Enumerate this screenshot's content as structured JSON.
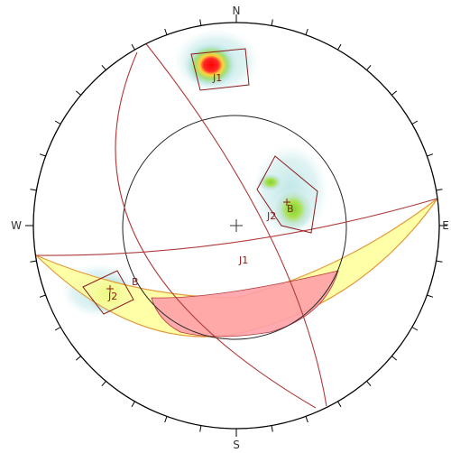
{
  "diagram": {
    "compass": {
      "north": "N",
      "south": "S",
      "east": "E",
      "west": "W"
    },
    "set_labels": {
      "j1_pole": "J1",
      "j1_plane": "J1",
      "j2_pole": "J2",
      "j2_plane": "J2",
      "b_pole": "B",
      "b_plane": "B"
    },
    "colors": {
      "outline": "#000000",
      "great_circle": "#b03a3a",
      "daylight_fill": "#ffff99",
      "daylight_stroke": "#e39a3a",
      "critical_zone_fill": "#ffa0a8",
      "density_low": "#bfe6e6",
      "density_mid": "#9bdc6b",
      "density_high": "#ff1a1a"
    }
  }
}
